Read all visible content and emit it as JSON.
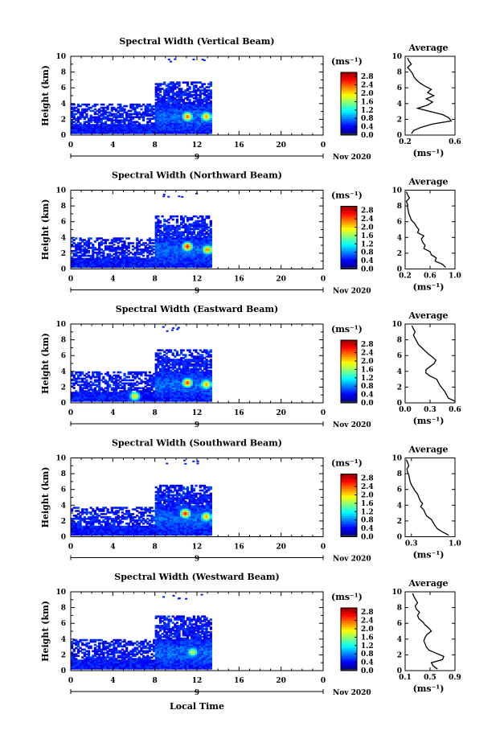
{
  "figure": {
    "average_title": "Average",
    "xlabel": "Local Time",
    "ylabel": "Height (km)",
    "unit_label": "(ms⁻¹)",
    "date_label": "Nov 2020",
    "date_axis_label": "9"
  },
  "chart_data": [
    {
      "type": "heatmap",
      "title": "Spectral Width (Vertical Beam)",
      "xlabel": "",
      "ylabel": "Height (km)",
      "xlim": [
        0,
        24
      ],
      "ylim": [
        0,
        10
      ],
      "xticks": [
        "0",
        "4",
        "8",
        "12",
        "16",
        "20",
        "0"
      ],
      "yticks": [
        "0",
        "2",
        "4",
        "6",
        "8",
        "10"
      ],
      "colorbar": {
        "label": "(ms⁻¹)",
        "ticks": [
          "0.0",
          "0.4",
          "0.8",
          "1.2",
          "1.6",
          "2.0",
          "2.4",
          "2.8"
        ],
        "range": [
          0,
          3.0
        ]
      },
      "data_extent": {
        "time_end_hr": 13.3,
        "top_km_before_8h": 4.0,
        "top_km_after_8h": 6.8
      },
      "high_value_regions": [
        {
          "time_hr": 11.0,
          "height_km": 2.3,
          "value": 2.4
        },
        {
          "time_hr": 12.8,
          "height_km": 2.3,
          "value": 2.2
        }
      ],
      "profile": {
        "xlim": [
          0.2,
          0.6
        ],
        "xticks": [
          "0.2",
          "0.6"
        ],
        "xlabel": "(ms⁻¹)",
        "heights": [
          0.2,
          0.6,
          1.0,
          1.4,
          1.8,
          2.2,
          2.6,
          3.0,
          3.4,
          3.8,
          4.2,
          4.6,
          5.0,
          5.4,
          5.8,
          6.2,
          6.6,
          7.0,
          7.4,
          7.8,
          8.2,
          8.6,
          9.0,
          9.4,
          9.8
        ],
        "values": [
          0.25,
          0.27,
          0.33,
          0.42,
          0.57,
          0.55,
          0.5,
          0.4,
          0.3,
          0.38,
          0.42,
          0.37,
          0.43,
          0.38,
          0.41,
          0.36,
          0.32,
          0.29,
          0.27,
          0.26,
          0.24,
          0.22,
          0.25,
          0.23,
          0.22
        ]
      }
    },
    {
      "type": "heatmap",
      "title": "Spectral Width (Northward Beam)",
      "xlabel": "",
      "ylabel": "Height (km)",
      "xlim": [
        0,
        24
      ],
      "ylim": [
        0,
        10
      ],
      "xticks": [
        "0",
        "4",
        "8",
        "12",
        "16",
        "20",
        "0"
      ],
      "yticks": [
        "0",
        "2",
        "4",
        "6",
        "8",
        "10"
      ],
      "colorbar": {
        "label": "(ms⁻¹)",
        "ticks": [
          "0.0",
          "0.4",
          "0.8",
          "1.2",
          "1.6",
          "2.0",
          "2.4",
          "2.8"
        ],
        "range": [
          0,
          3.0
        ]
      },
      "data_extent": {
        "time_end_hr": 13.3,
        "top_km_before_8h": 4.0,
        "top_km_after_8h": 6.8
      },
      "high_value_regions": [
        {
          "time_hr": 11.0,
          "height_km": 2.8,
          "value": 2.6
        },
        {
          "time_hr": 12.9,
          "height_km": 2.4,
          "value": 2.3
        }
      ],
      "profile": {
        "xlim": [
          0.2,
          1.0
        ],
        "xticks": [
          "0.2",
          "0.6",
          "1.0"
        ],
        "xlabel": "(ms⁻¹)",
        "heights": [
          0.2,
          0.6,
          1.0,
          1.4,
          1.8,
          2.2,
          2.6,
          3.0,
          3.4,
          3.8,
          4.2,
          4.6,
          5.0,
          5.4,
          5.8,
          6.2,
          6.6,
          7.0,
          7.4,
          7.8,
          8.2,
          8.6,
          9.0,
          9.4,
          9.8
        ],
        "values": [
          0.85,
          0.8,
          0.68,
          0.7,
          0.62,
          0.6,
          0.5,
          0.52,
          0.48,
          0.46,
          0.5,
          0.4,
          0.42,
          0.38,
          0.35,
          0.3,
          0.28,
          0.26,
          0.25,
          0.24,
          0.24,
          0.22,
          0.27,
          0.24,
          0.22
        ]
      }
    },
    {
      "type": "heatmap",
      "title": "Spectral Width (Eastward Beam)",
      "xlabel": "",
      "ylabel": "Height (km)",
      "xlim": [
        0,
        24
      ],
      "ylim": [
        0,
        10
      ],
      "xticks": [
        "0",
        "4",
        "8",
        "12",
        "16",
        "20",
        "0"
      ],
      "yticks": [
        "0",
        "2",
        "4",
        "6",
        "8",
        "10"
      ],
      "colorbar": {
        "label": "(ms⁻¹)",
        "ticks": [
          "0.0",
          "0.4",
          "0.8",
          "1.2",
          "1.6",
          "2.0",
          "2.4",
          "2.8"
        ],
        "range": [
          0,
          3.0
        ]
      },
      "data_extent": {
        "time_end_hr": 13.3,
        "top_km_before_8h": 4.0,
        "top_km_after_8h": 6.8
      },
      "high_value_regions": [
        {
          "time_hr": 11.0,
          "height_km": 2.5,
          "value": 2.5
        },
        {
          "time_hr": 12.8,
          "height_km": 2.3,
          "value": 2.2
        },
        {
          "time_hr": 6.0,
          "height_km": 0.8,
          "value": 2.0
        }
      ],
      "profile": {
        "xlim": [
          0.0,
          0.6
        ],
        "xticks": [
          "0.0",
          "0.3",
          "0.6"
        ],
        "xlabel": "(ms⁻¹)",
        "heights": [
          0.2,
          0.6,
          1.0,
          1.4,
          1.8,
          2.2,
          2.6,
          3.0,
          3.4,
          3.8,
          4.2,
          4.6,
          5.0,
          5.4,
          5.8,
          6.2,
          6.6,
          7.0,
          7.4,
          7.8,
          8.2,
          8.6,
          9.0,
          9.4,
          9.8
        ],
        "values": [
          0.6,
          0.52,
          0.5,
          0.48,
          0.45,
          0.42,
          0.4,
          0.38,
          0.3,
          0.25,
          0.25,
          0.3,
          0.35,
          0.37,
          0.33,
          0.28,
          0.24,
          0.2,
          0.16,
          0.14,
          0.12,
          0.1,
          0.12,
          0.1,
          0.08
        ]
      }
    },
    {
      "type": "heatmap",
      "title": "Spectral Width (Southward Beam)",
      "xlabel": "",
      "ylabel": "Height (km)",
      "xlim": [
        0,
        24
      ],
      "ylim": [
        0,
        10
      ],
      "xticks": [
        "0",
        "4",
        "8",
        "12",
        "16",
        "20",
        "0"
      ],
      "yticks": [
        "0",
        "2",
        "4",
        "6",
        "8",
        "10"
      ],
      "colorbar": {
        "label": "(ms⁻¹)",
        "ticks": [
          "0.0",
          "0.4",
          "0.8",
          "1.2",
          "1.6",
          "2.0",
          "2.4",
          "2.8"
        ],
        "range": [
          0,
          3.0
        ]
      },
      "data_extent": {
        "time_end_hr": 13.3,
        "top_km_before_8h": 3.8,
        "top_km_after_8h": 6.5
      },
      "high_value_regions": [
        {
          "time_hr": 10.8,
          "height_km": 2.9,
          "value": 2.6
        },
        {
          "time_hr": 12.8,
          "height_km": 2.5,
          "value": 2.2
        }
      ],
      "profile": {
        "xlim": [
          0.2,
          1.0
        ],
        "xticks": [
          "0.3",
          "1.0"
        ],
        "xlabel": "(ms⁻¹)",
        "heights": [
          0.2,
          0.6,
          1.0,
          1.4,
          1.8,
          2.2,
          2.6,
          3.0,
          3.4,
          3.8,
          4.2,
          4.6,
          5.0,
          5.4,
          5.8,
          6.2,
          6.6,
          7.0,
          7.4,
          7.8,
          8.2,
          8.6,
          9.0,
          9.4,
          9.8
        ],
        "values": [
          0.9,
          0.8,
          0.72,
          0.68,
          0.65,
          0.62,
          0.55,
          0.52,
          0.5,
          0.45,
          0.48,
          0.44,
          0.42,
          0.4,
          0.36,
          0.33,
          0.3,
          0.28,
          0.27,
          0.26,
          0.24,
          0.23,
          0.26,
          0.24,
          0.22
        ]
      }
    },
    {
      "type": "heatmap",
      "title": "Spectral Width (Westward Beam)",
      "xlabel": "Local Time",
      "ylabel": "Height (km)",
      "xlim": [
        0,
        24
      ],
      "ylim": [
        0,
        10
      ],
      "xticks": [
        "0",
        "4",
        "8",
        "12",
        "16",
        "20",
        "0"
      ],
      "yticks": [
        "0",
        "2",
        "4",
        "6",
        "8",
        "10"
      ],
      "colorbar": {
        "label": "(ms⁻¹)",
        "ticks": [
          "0.0",
          "0.4",
          "0.8",
          "1.2",
          "1.6",
          "2.0",
          "2.4",
          "2.8"
        ],
        "range": [
          0,
          3.0
        ]
      },
      "data_extent": {
        "time_end_hr": 13.3,
        "top_km_before_8h": 4.0,
        "top_km_after_8h": 7.0
      },
      "high_value_regions": [
        {
          "time_hr": 11.5,
          "height_km": 2.3,
          "value": 1.8
        }
      ],
      "profile": {
        "xlim": [
          0.1,
          0.9
        ],
        "xticks": [
          "0.1",
          "0.5",
          "0.9"
        ],
        "xlabel": "(ms⁻¹)",
        "heights": [
          0.2,
          0.6,
          1.0,
          1.4,
          1.8,
          2.2,
          2.6,
          3.0,
          3.4,
          3.8,
          4.2,
          4.6,
          5.0,
          5.4,
          5.8,
          6.2,
          6.6,
          7.0,
          7.4,
          7.8,
          8.2,
          8.6,
          9.0,
          9.4,
          9.8
        ],
        "values": [
          0.62,
          0.55,
          0.52,
          0.7,
          0.72,
          0.6,
          0.48,
          0.44,
          0.42,
          0.4,
          0.42,
          0.45,
          0.52,
          0.48,
          0.42,
          0.38,
          0.32,
          0.3,
          0.33,
          0.28,
          0.26,
          0.3,
          0.27,
          0.24,
          0.22
        ]
      }
    }
  ]
}
